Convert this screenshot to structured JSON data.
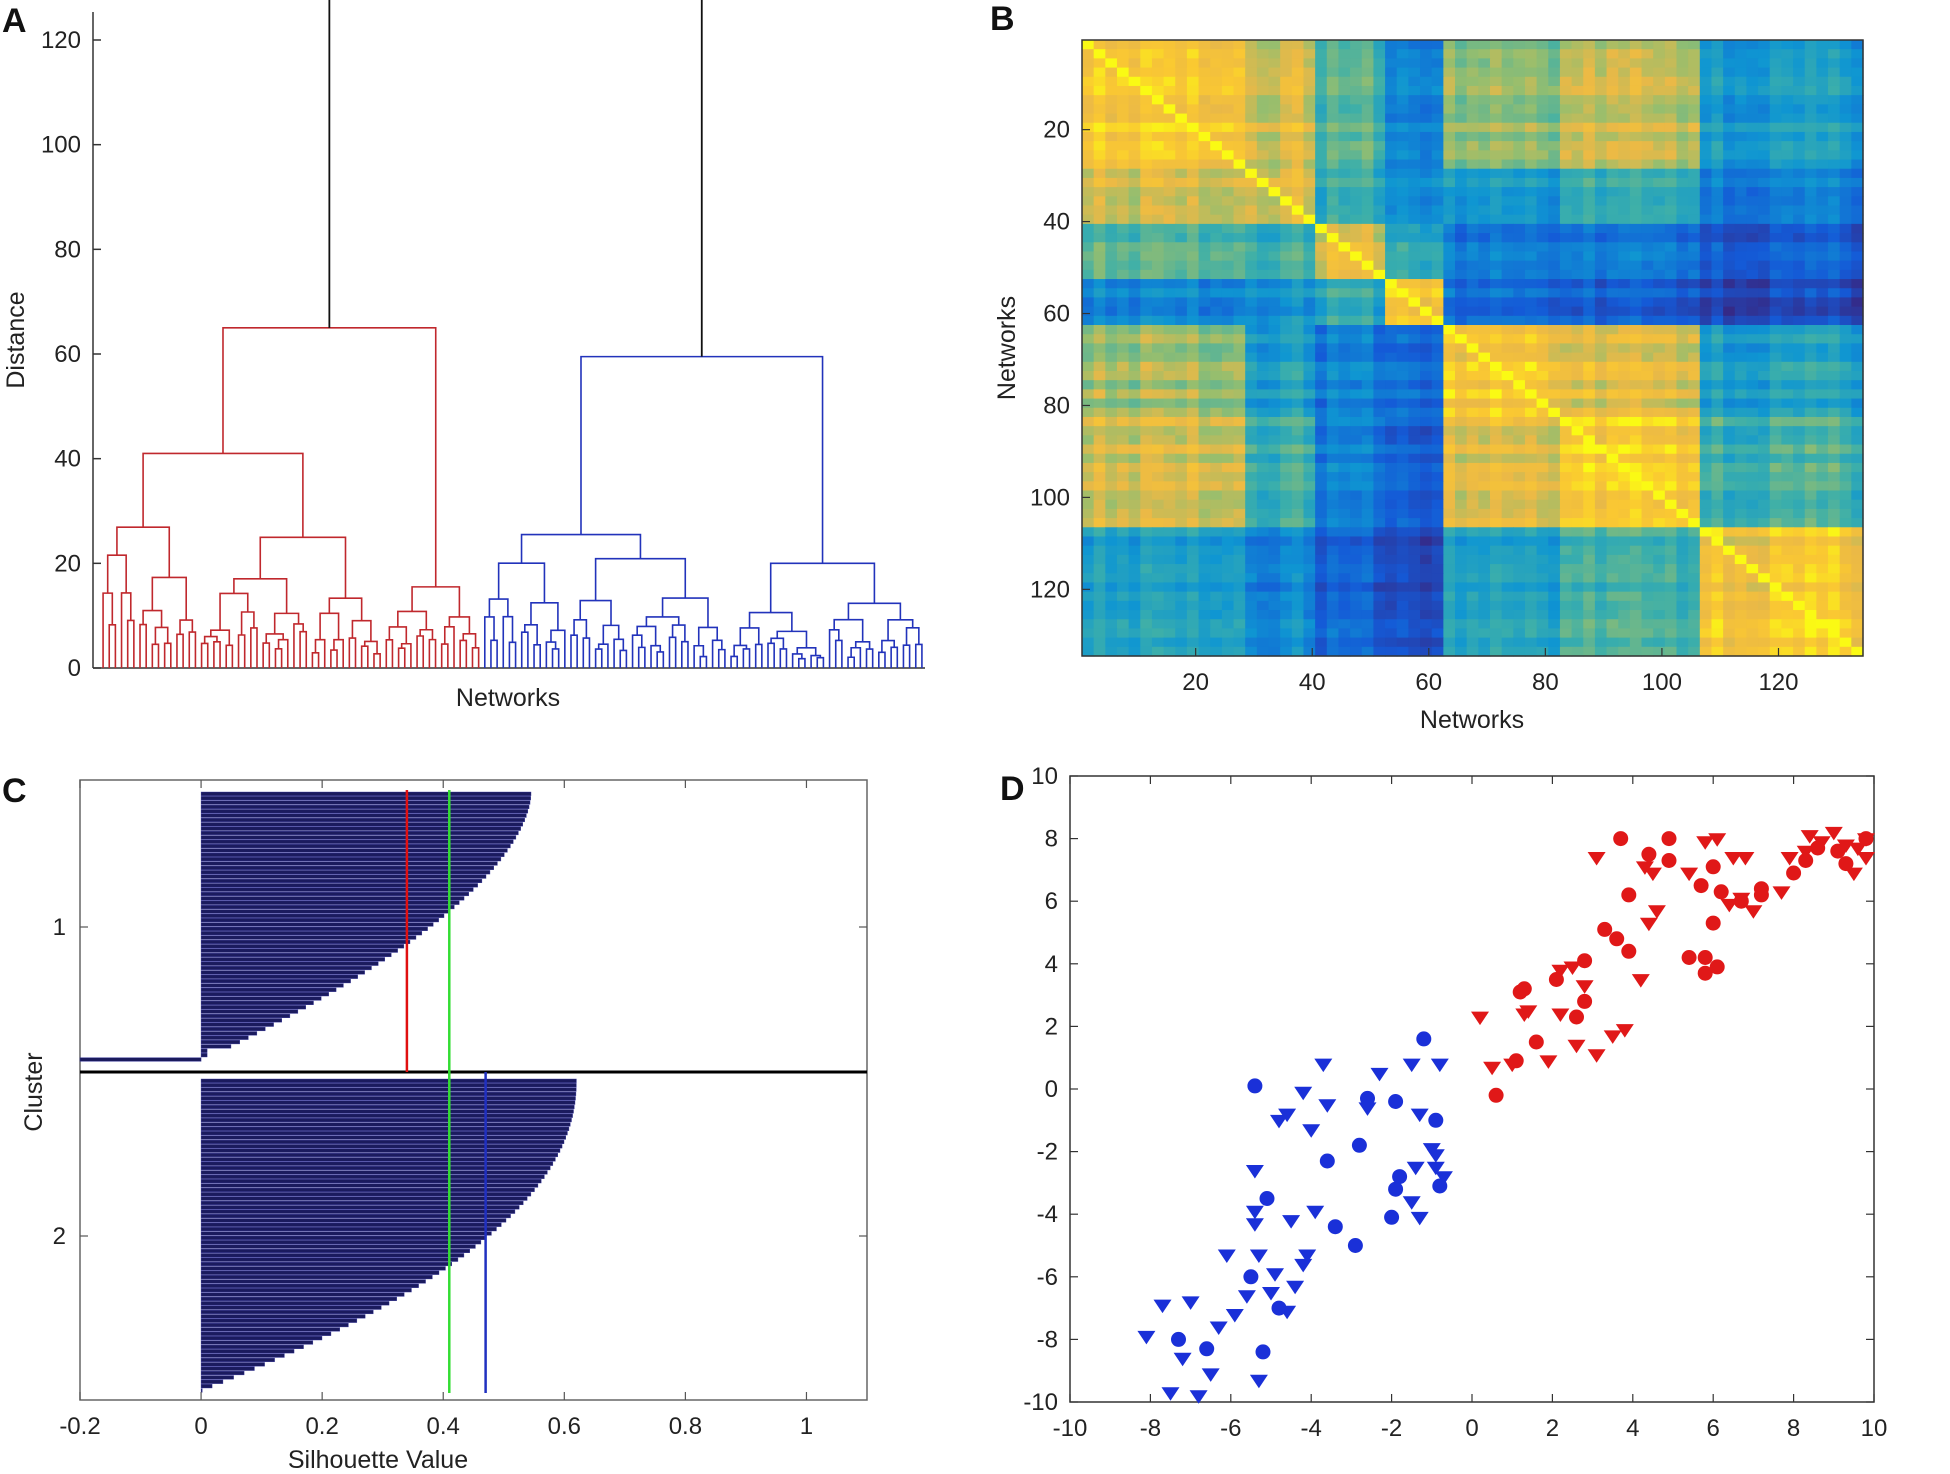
{
  "figure": {
    "panel_labels": [
      "A",
      "B",
      "C",
      "D"
    ],
    "colors": {
      "cluster1": "#c0282d",
      "cluster2": "#2233bb",
      "root": "#111111",
      "silhouette_bar": "#1b1b5e",
      "mean_red": "#e01010",
      "mean_green": "#33dd33",
      "mean_blue": "#2030c0",
      "scatter_red": "#e01818",
      "scatter_blue": "#1a30d8"
    }
  },
  "chart_data": [
    {
      "panel": "A",
      "type": "dendrogram",
      "xlabel": "Networks",
      "ylabel": "Distance",
      "ylim": [
        0,
        128
      ],
      "yticks": [
        "0",
        "20",
        "40",
        "60",
        "80",
        "100",
        "120"
      ],
      "leaves": 134,
      "clusters": [
        {
          "name": "cluster 1",
          "color": "red",
          "leaves": 62,
          "merge_height": 65
        },
        {
          "name": "cluster 2",
          "color": "blue",
          "leaves": 72,
          "merge_height": 59.5
        }
      ],
      "root_height": 128,
      "subclusters": [
        {
          "parent": "cluster 1",
          "heights": [
            41,
            22,
            18,
            19,
            15.5
          ]
        },
        {
          "parent": "cluster 2",
          "heights": [
            25.5,
            20,
            19.5,
            18,
            14
          ]
        }
      ]
    },
    {
      "panel": "B",
      "type": "heatmap",
      "xlabel": "Networks",
      "ylabel": "Networks",
      "size": 134,
      "xticks": [
        "20",
        "40",
        "60",
        "80",
        "100",
        "120"
      ],
      "yticks": [
        "20",
        "40",
        "60",
        "80",
        "100",
        "120"
      ],
      "blocks": [
        1,
        28,
        40,
        52,
        63,
        82,
        107,
        134
      ],
      "colormap": "parula"
    },
    {
      "panel": "C",
      "type": "silhouette",
      "xlabel": "Silhouette Value",
      "ylabel": "Cluster",
      "xlim": [
        -0.2,
        1.1
      ],
      "xticks": [
        "-0.2",
        "0",
        "0.2",
        "0.4",
        "0.6",
        "0.8",
        "1"
      ],
      "yticks": [
        "1",
        "2"
      ],
      "clusters": [
        {
          "name": "1",
          "n": 62,
          "max": 0.54,
          "min": -0.2,
          "mean": 0.34
        },
        {
          "name": "2",
          "n": 72,
          "max": 0.62,
          "min": 0.0,
          "mean": 0.47
        }
      ],
      "overall_mean": 0.41
    },
    {
      "panel": "D",
      "type": "scatter",
      "xlim": [
        -10,
        10
      ],
      "ylim": [
        -10,
        10
      ],
      "xticks": [
        "-10",
        "-8",
        "-6",
        "-4",
        "-2",
        "0",
        "2",
        "4",
        "6",
        "8",
        "10"
      ],
      "yticks": [
        "-10",
        "-8",
        "-6",
        "-4",
        "-2",
        "0",
        "2",
        "4",
        "6",
        "8",
        "10"
      ],
      "series": [
        {
          "name": "blue circles",
          "color": "blue",
          "marker": "circle",
          "points": [
            [
              -5.4,
              0.1
            ],
            [
              -7.3,
              -8
            ],
            [
              -6.6,
              -8.3
            ],
            [
              -5.5,
              -6
            ],
            [
              -5.1,
              -3.5
            ],
            [
              -5.2,
              -8.4
            ],
            [
              -4.8,
              -7
            ],
            [
              -3.4,
              -4.4
            ],
            [
              -2.9,
              -5
            ],
            [
              -3.6,
              -2.3
            ],
            [
              -2.8,
              -1.8
            ],
            [
              -2.6,
              -0.3
            ],
            [
              -1.9,
              -0.4
            ],
            [
              -1.8,
              -2.8
            ],
            [
              -1.9,
              -3.2
            ],
            [
              -2.0,
              -4.1
            ],
            [
              -1.2,
              1.6
            ],
            [
              -0.9,
              -1
            ],
            [
              -0.8,
              -3.1
            ]
          ]
        },
        {
          "name": "blue triangles",
          "color": "blue",
          "marker": "triangle",
          "points": [
            [
              -8.1,
              -7.9
            ],
            [
              -7.7,
              -6.9
            ],
            [
              -7.5,
              -9.7
            ],
            [
              -7.2,
              -8.6
            ],
            [
              -7.0,
              -6.8
            ],
            [
              -6.8,
              -9.8
            ],
            [
              -6.5,
              -9.1
            ],
            [
              -6.3,
              -7.6
            ],
            [
              -6.1,
              -5.3
            ],
            [
              -5.9,
              -7.2
            ],
            [
              -5.6,
              -6.6
            ],
            [
              -5.3,
              -9.3
            ],
            [
              -5.3,
              -5.3
            ],
            [
              -5.0,
              -6.5
            ],
            [
              -4.9,
              -5.9
            ],
            [
              -4.6,
              -7.1
            ],
            [
              -4.4,
              -6.3
            ],
            [
              -4.2,
              -5.6
            ],
            [
              -5.4,
              -4.3
            ],
            [
              -5.4,
              -3.9
            ],
            [
              -5.4,
              -2.6
            ],
            [
              -4.8,
              -1.0
            ],
            [
              -4.6,
              -0.8
            ],
            [
              -4.0,
              -1.3
            ],
            [
              -4.5,
              -4.2
            ],
            [
              -4.1,
              -5.3
            ],
            [
              -3.9,
              -3.9
            ],
            [
              -4.2,
              -0.1
            ],
            [
              -3.6,
              -0.5
            ],
            [
              -3.7,
              0.8
            ],
            [
              -2.6,
              -0.6
            ],
            [
              -2.3,
              0.5
            ],
            [
              -1.5,
              0.8
            ],
            [
              -1.3,
              -0.8
            ],
            [
              -1.4,
              -2.5
            ],
            [
              -1.0,
              -1.9
            ],
            [
              -0.9,
              -2.5
            ],
            [
              -0.7,
              -2.8
            ],
            [
              -1.5,
              -3.6
            ],
            [
              -1.3,
              -4.1
            ],
            [
              -0.9,
              -2.1
            ],
            [
              -0.8,
              0.8
            ]
          ]
        },
        {
          "name": "red circles",
          "color": "red",
          "marker": "circle",
          "points": [
            [
              0.6,
              -0.2
            ],
            [
              1.1,
              0.9
            ],
            [
              1.2,
              3.1
            ],
            [
              1.3,
              3.2
            ],
            [
              1.6,
              1.5
            ],
            [
              2.1,
              3.5
            ],
            [
              2.6,
              2.3
            ],
            [
              2.8,
              2.8
            ],
            [
              2.8,
              4.1
            ],
            [
              3.3,
              5.1
            ],
            [
              3.6,
              4.8
            ],
            [
              3.9,
              4.4
            ],
            [
              3.9,
              6.2
            ],
            [
              3.7,
              8
            ],
            [
              4.4,
              7.5
            ],
            [
              4.9,
              8
            ],
            [
              4.9,
              7.3
            ],
            [
              5.4,
              4.2
            ],
            [
              5.8,
              4.2
            ],
            [
              5.8,
              3.7
            ],
            [
              6.1,
              3.9
            ],
            [
              5.7,
              6.5
            ],
            [
              6.0,
              7.1
            ],
            [
              6.2,
              6.3
            ],
            [
              6.0,
              5.3
            ],
            [
              6.7,
              6.0
            ],
            [
              7.2,
              6.2
            ],
            [
              7.2,
              6.4
            ],
            [
              8.0,
              6.9
            ],
            [
              8.3,
              7.3
            ],
            [
              8.6,
              7.7
            ],
            [
              9.1,
              7.6
            ],
            [
              9.3,
              7.2
            ],
            [
              9.8,
              8
            ]
          ]
        },
        {
          "name": "red triangles",
          "color": "red",
          "marker": "triangle",
          "points": [
            [
              0.2,
              2.3
            ],
            [
              0.5,
              0.7
            ],
            [
              1.0,
              0.8
            ],
            [
              1.3,
              2.4
            ],
            [
              1.4,
              2.5
            ],
            [
              1.9,
              0.9
            ],
            [
              2.2,
              3.8
            ],
            [
              2.5,
              3.9
            ],
            [
              2.2,
              2.4
            ],
            [
              2.6,
              1.4
            ],
            [
              2.8,
              3.3
            ],
            [
              3.1,
              1.1
            ],
            [
              3.5,
              1.7
            ],
            [
              3.8,
              1.9
            ],
            [
              3.1,
              7.4
            ],
            [
              4.3,
              7.1
            ],
            [
              4.5,
              6.9
            ],
            [
              4.4,
              5.3
            ],
            [
              4.2,
              3.5
            ],
            [
              4.6,
              5.7
            ],
            [
              5.4,
              6.9
            ],
            [
              5.8,
              7.9
            ],
            [
              6.1,
              8.0
            ],
            [
              6.5,
              7.4
            ],
            [
              6.8,
              7.4
            ],
            [
              6.4,
              5.9
            ],
            [
              6.7,
              6.1
            ],
            [
              7.0,
              5.7
            ],
            [
              7.7,
              6.3
            ],
            [
              7.9,
              7.4
            ],
            [
              8.3,
              7.6
            ],
            [
              8.4,
              8.1
            ],
            [
              8.7,
              7.9
            ],
            [
              9.3,
              7.8
            ],
            [
              9.6,
              7.7
            ],
            [
              9.8,
              7.4
            ],
            [
              9.0,
              8.2
            ],
            [
              9.5,
              6.9
            ],
            [
              9.8,
              8.0
            ]
          ]
        }
      ]
    }
  ]
}
